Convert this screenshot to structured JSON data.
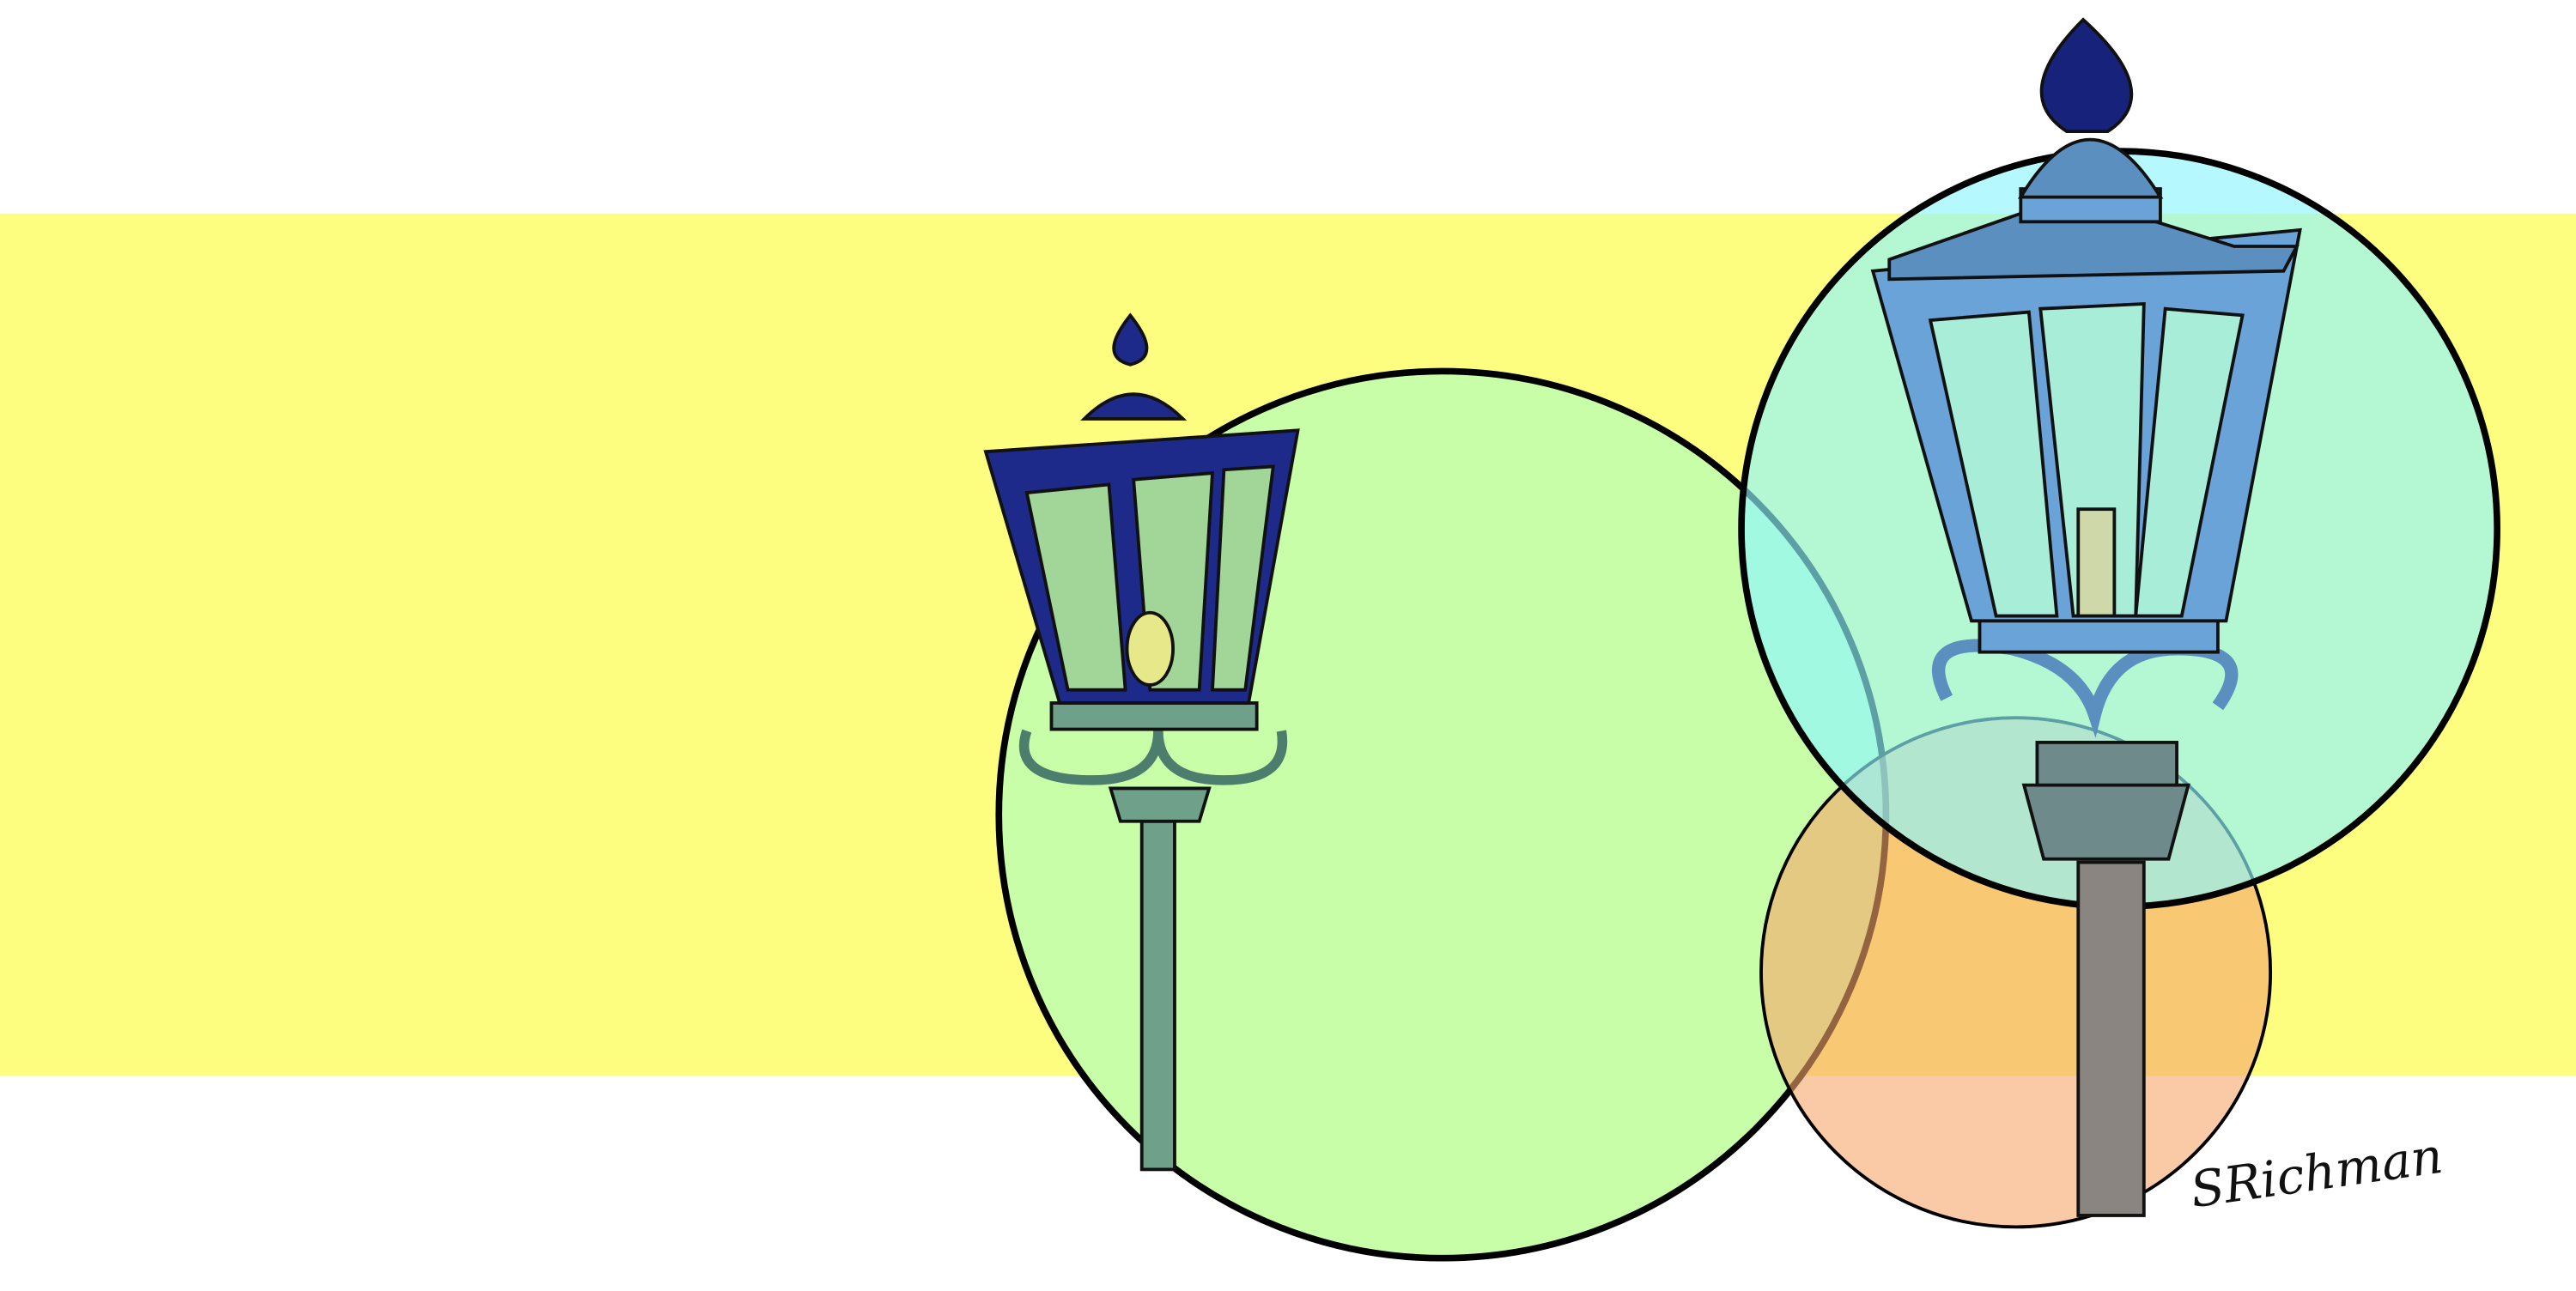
{
  "signature": "SRichman"
}
